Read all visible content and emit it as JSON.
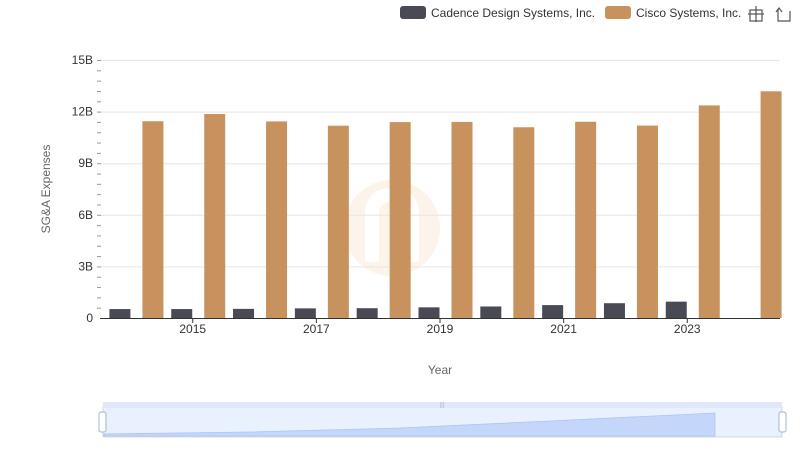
{
  "chart_data": {
    "type": "bar",
    "title": "",
    "xlabel": "Year",
    "ylabel": "SG&A Expenses",
    "categories": [
      2014,
      2015,
      2016,
      2017,
      2018,
      2019,
      2020,
      2021,
      2022,
      2023,
      2024
    ],
    "x_tick_labels": [
      "2015",
      "2017",
      "2019",
      "2021",
      "2023"
    ],
    "y_tick_labels": [
      "0",
      "3B",
      "6B",
      "9B",
      "12B",
      "15B"
    ],
    "ylim": [
      0,
      15
    ],
    "y_unit": "billions",
    "grid": true,
    "legend_position": "top-right",
    "series": [
      {
        "name": "Cadence Design Systems, Inc.",
        "color": "#4a4a55",
        "values": [
          0.52,
          0.52,
          0.53,
          0.56,
          0.57,
          0.62,
          0.67,
          0.75,
          0.86,
          0.95,
          null
        ]
      },
      {
        "name": "Cisco Systems, Inc.",
        "color": "#c8925e",
        "values": [
          11.44,
          11.86,
          11.43,
          11.18,
          11.39,
          11.4,
          11.09,
          11.41,
          11.19,
          12.36,
          13.18
        ]
      }
    ]
  },
  "toolbar": {
    "zoom_icon": "zoom-rect-icon",
    "restore_icon": "restore-icon"
  }
}
